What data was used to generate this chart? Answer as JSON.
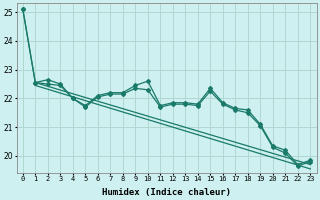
{
  "xlabel": "Humidex (Indice chaleur)",
  "bg_color": "#cef0f0",
  "grid_color": "#b0d8d0",
  "line_color": "#1a7a6a",
  "xlim": [
    -0.5,
    23.5
  ],
  "ylim": [
    19.4,
    25.3
  ],
  "yticks": [
    20,
    21,
    22,
    23,
    24,
    25
  ],
  "xtick_labels": [
    "0",
    "1",
    "2",
    "3",
    "4",
    "5",
    "6",
    "7",
    "8",
    "9",
    "10",
    "11",
    "12",
    "13",
    "14",
    "15",
    "16",
    "17",
    "18",
    "19",
    "20",
    "21",
    "22",
    "23"
  ],
  "series1": [
    25.1,
    22.55,
    22.65,
    22.5,
    22.0,
    21.75,
    22.1,
    22.2,
    22.2,
    22.45,
    22.6,
    21.75,
    21.85,
    21.85,
    21.8,
    22.35,
    21.85,
    21.65,
    21.6,
    21.1,
    20.35,
    20.2,
    19.7,
    19.85
  ],
  "series2": [
    25.1,
    22.55,
    22.5,
    22.45,
    22.0,
    21.7,
    22.05,
    22.15,
    22.15,
    22.35,
    22.3,
    21.7,
    21.8,
    21.8,
    21.75,
    22.25,
    21.8,
    21.6,
    21.5,
    21.05,
    20.3,
    20.1,
    19.65,
    19.8
  ],
  "trend1_x": [
    1,
    23
  ],
  "trend1_y": [
    22.55,
    19.7
  ],
  "trend2_x": [
    1,
    23
  ],
  "trend2_y": [
    22.45,
    19.55
  ]
}
